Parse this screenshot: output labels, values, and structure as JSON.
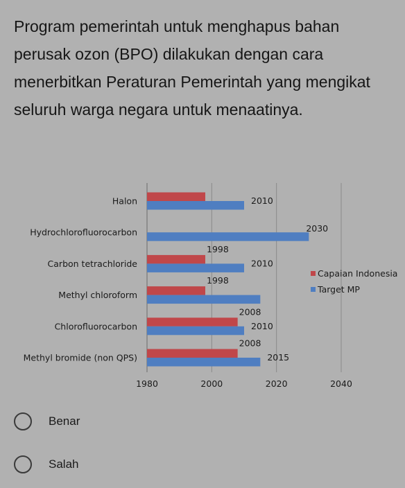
{
  "question": "Program pemerintah untuk menghapus  bahan perusak ozon (BPO) dilakukan dengan cara menerbitkan Peraturan Pemerintah yang mengikat seluruh warga negara untuk menaatinya.",
  "chart_data": {
    "type": "bar",
    "orientation": "horizontal",
    "categories": [
      "Halon",
      "Hydrochlorofluorocarbon",
      "Carbon tetrachloride",
      "Methyl chloroform",
      "Chlorofluorocarbon",
      "Methyl bromide (non QPS)"
    ],
    "series": [
      {
        "name": "Capaian Indonesia",
        "color": "#c0474a",
        "values": [
          1998,
          null,
          1998,
          1998,
          2008,
          2008
        ],
        "labels": [
          "",
          "",
          "1998",
          "1998",
          "2008",
          "2008"
        ]
      },
      {
        "name": "Target MP",
        "color": "#4f7ec1",
        "values": [
          2010,
          2030,
          2010,
          2015,
          2010,
          2015
        ],
        "labels": [
          "2010",
          "2030",
          "2010",
          "",
          "2010",
          "2015"
        ]
      }
    ],
    "xlim": [
      1980,
      2040
    ],
    "xticks": [
      "1980",
      "2000",
      "2020",
      "2040"
    ],
    "grid": true,
    "legend": "right"
  },
  "options": [
    {
      "label": "Benar"
    },
    {
      "label": "Salah"
    }
  ]
}
